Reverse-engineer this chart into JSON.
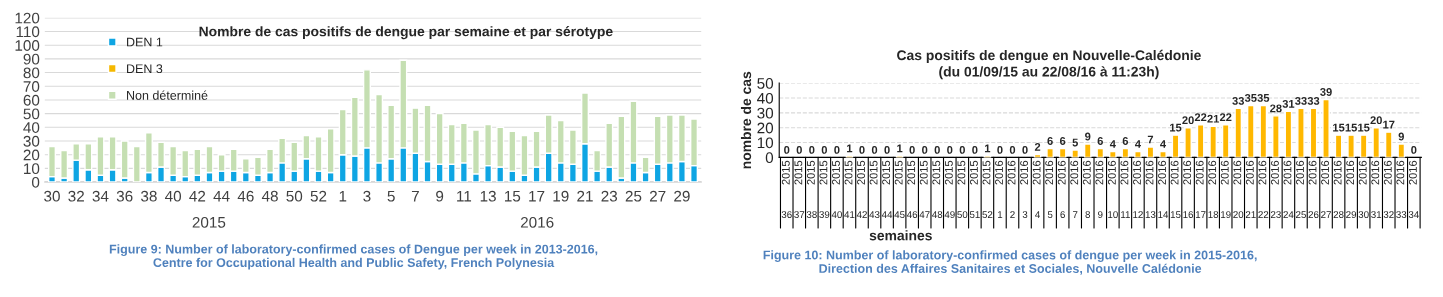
{
  "chart_data": [
    {
      "type": "bar",
      "title": "Nombre de cas positifs de dengue par semaine et par sérotype",
      "stacked": true,
      "categories": [
        "30",
        null,
        "32",
        null,
        "34",
        null,
        "36",
        null,
        "38",
        null,
        "40",
        null,
        "42",
        null,
        "44",
        null,
        "46",
        null,
        "48",
        null,
        "50",
        null,
        "52",
        null,
        "1",
        null,
        "3",
        null,
        "5",
        null,
        "7",
        null,
        "9",
        null,
        "11",
        null,
        "13",
        null,
        "15",
        null,
        "17",
        null,
        "19",
        null,
        "21",
        null,
        "23",
        null,
        "25",
        null,
        "27",
        null,
        "29",
        null
      ],
      "series": [
        {
          "name": "DEN 1",
          "color": "#0ea5e3",
          "values": [
            4,
            3,
            16,
            9,
            5,
            9,
            3,
            0,
            7,
            11,
            5,
            4,
            5,
            7,
            8,
            8,
            7,
            5,
            7,
            14,
            8,
            17,
            8,
            7,
            20,
            19,
            25,
            14,
            17,
            25,
            21,
            15,
            13,
            13,
            14,
            6,
            12,
            11,
            8,
            5,
            11,
            21,
            14,
            13,
            28,
            8,
            11,
            3,
            14,
            7,
            13,
            14,
            15,
            12
          ]
        },
        {
          "name": "DEN 3",
          "color": "#f5b800",
          "values": [
            0,
            0,
            0,
            0,
            0,
            0,
            0,
            0,
            0,
            0,
            0,
            0,
            0,
            0,
            0,
            0,
            0,
            0,
            0,
            0,
            0,
            0,
            0,
            0,
            0,
            0,
            0,
            0,
            0,
            0,
            0,
            0,
            0,
            0,
            0,
            0,
            0,
            0,
            0,
            0,
            0,
            0,
            0,
            0,
            0,
            0,
            0,
            0,
            0,
            0,
            0,
            0,
            0,
            0
          ]
        },
        {
          "name": "Non déterminé",
          "color": "#c5dfb2",
          "values": [
            22,
            20,
            12,
            19,
            28,
            24,
            27,
            26,
            29,
            18,
            21,
            19,
            19,
            19,
            12,
            16,
            10,
            13,
            17,
            18,
            21,
            17,
            25,
            32,
            33,
            43,
            57,
            50,
            39,
            64,
            33,
            41,
            37,
            29,
            29,
            32,
            30,
            29,
            29,
            29,
            26,
            28,
            31,
            25,
            37,
            15,
            32,
            45,
            45,
            11,
            35,
            35,
            34,
            34
          ]
        }
      ],
      "ylim": [
        0,
        120
      ],
      "yticks": [
        0,
        10,
        20,
        30,
        40,
        50,
        60,
        70,
        80,
        90,
        100,
        110,
        120
      ],
      "grid": "y",
      "legend": "top left",
      "annotations": [
        "2015",
        "2016",
        "Figure 9: Number of laboratory-confirmed cases of Dengue per week in 2013-2016,\nCentre for Occupational Health and Public Safety, French Polynesia"
      ]
    },
    {
      "type": "bar",
      "title": "Cas positifs de dengue en Nouvelle-Calédonie",
      "subtitle": "(du 01/09/15 au 22/08/16 à 11:23h)",
      "ylabel": "nombre de cas",
      "xlabel": "semaines",
      "categories": [
        "2015 36",
        "2015 37",
        "2015 38",
        "2015 39",
        "2015 40",
        "2015 41",
        "2015 42",
        "2015 43",
        "2015 44",
        "2015 45",
        "2015 46",
        "2015 47",
        "2015 48",
        "2015 49",
        "2015 50",
        "2015 51",
        "2015 52",
        "2016 1",
        "2016 2",
        "2016 3",
        "2016 4",
        "2016 5",
        "2016 6",
        "2016 7",
        "2016 8",
        "2016 9",
        "2016 10",
        "2016 11",
        "2016 12",
        "2016 13",
        "2016 14",
        "2016 15",
        "2016 16",
        "2016 17",
        "2016 18",
        "2016 19",
        "2016 20",
        "2016 21",
        "2016 22",
        "2016 23",
        "2016 24",
        "2016 25",
        "2016 26",
        "2016 27",
        "2016 28",
        "2016 29",
        "2016 30",
        "2016 31",
        "2016 32",
        "2016 33",
        "2016 34"
      ],
      "values": [
        0,
        0,
        0,
        0,
        0,
        1,
        0,
        0,
        0,
        1,
        0,
        0,
        0,
        0,
        0,
        0,
        1,
        0,
        0,
        0,
        2,
        6,
        6,
        5,
        9,
        6,
        4,
        6,
        4,
        7,
        4,
        15,
        20,
        22,
        21,
        22,
        33,
        35,
        35,
        28,
        31,
        33,
        33,
        39,
        15,
        15,
        15,
        20,
        17,
        9,
        0
      ],
      "color": "#ffb800",
      "data_labels": true,
      "ylim": [
        0,
        50
      ],
      "yticks": [
        0,
        10,
        20,
        30,
        40,
        50
      ],
      "grid": "y",
      "annotations": [
        "Figure 10: Number of laboratory-confirmed cases of dengue per week in 2015-2016,\nDirection des Affaires Sanitaires et Sociales, Nouvelle Calédonie"
      ]
    }
  ]
}
